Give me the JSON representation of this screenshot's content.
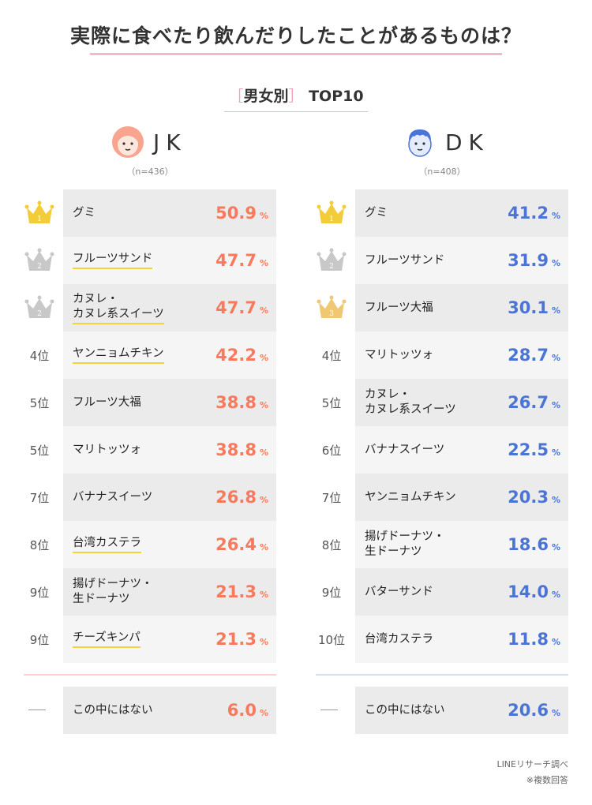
{
  "title": "実際に食べたり飲んだりしたことがあるものは？",
  "subtitle": {
    "open": "［",
    "text": "男女別",
    "close": "］",
    "tail": "TOP10"
  },
  "colors": {
    "jk": "#f77a5c",
    "dk": "#4a74d6",
    "gold": "#f3cc3a",
    "silver": "#c8c8c8",
    "bronze": "#f0c873",
    "underline": "#f3d33e"
  },
  "jk": {
    "label": "JK",
    "n": "（n=436）",
    "rows": [
      {
        "rank": "1",
        "rank_type": "crown-gold",
        "item_lines": [
          "グミ"
        ],
        "underline": false,
        "value": "50.9",
        "unit": "%"
      },
      {
        "rank": "2",
        "rank_type": "crown-silver",
        "item_lines": [
          "フルーツサンド"
        ],
        "underline": true,
        "value": "47.7",
        "unit": "%"
      },
      {
        "rank": "2",
        "rank_type": "crown-silver",
        "item_lines": [
          "カヌレ・",
          "カヌレ系スイーツ"
        ],
        "underline": true,
        "value": "47.7",
        "unit": "%"
      },
      {
        "rank": "4位",
        "rank_type": "text",
        "item_lines": [
          "ヤンニョムチキン"
        ],
        "underline": true,
        "value": "42.2",
        "unit": "%"
      },
      {
        "rank": "5位",
        "rank_type": "text",
        "item_lines": [
          "フルーツ大福"
        ],
        "underline": false,
        "value": "38.8",
        "unit": "%"
      },
      {
        "rank": "5位",
        "rank_type": "text",
        "item_lines": [
          "マリトッツォ"
        ],
        "underline": false,
        "value": "38.8",
        "unit": "%"
      },
      {
        "rank": "7位",
        "rank_type": "text",
        "item_lines": [
          "バナナスイーツ"
        ],
        "underline": false,
        "value": "26.8",
        "unit": "%"
      },
      {
        "rank": "8位",
        "rank_type": "text",
        "item_lines": [
          "台湾カステラ"
        ],
        "underline": true,
        "value": "26.4",
        "unit": "%"
      },
      {
        "rank": "9位",
        "rank_type": "text",
        "item_lines": [
          "揚げドーナツ・",
          "生ドーナツ"
        ],
        "underline": false,
        "value": "21.3",
        "unit": "%"
      },
      {
        "rank": "9位",
        "rank_type": "text",
        "item_lines": [
          "チーズキンパ"
        ],
        "underline": true,
        "value": "21.3",
        "unit": "%"
      }
    ],
    "none": {
      "item": "この中にはない",
      "value": "6.0",
      "unit": "%"
    }
  },
  "dk": {
    "label": "DK",
    "n": "（n=408）",
    "rows": [
      {
        "rank": "1",
        "rank_type": "crown-gold",
        "item_lines": [
          "グミ"
        ],
        "underline": false,
        "value": "41.2",
        "unit": "%"
      },
      {
        "rank": "2",
        "rank_type": "crown-silver",
        "item_lines": [
          "フルーツサンド"
        ],
        "underline": false,
        "value": "31.9",
        "unit": "%"
      },
      {
        "rank": "3",
        "rank_type": "crown-bronze",
        "item_lines": [
          "フルーツ大福"
        ],
        "underline": false,
        "value": "30.1",
        "unit": "%"
      },
      {
        "rank": "4位",
        "rank_type": "text",
        "item_lines": [
          "マリトッツォ"
        ],
        "underline": false,
        "value": "28.7",
        "unit": "%"
      },
      {
        "rank": "5位",
        "rank_type": "text",
        "item_lines": [
          "カヌレ・",
          "カヌレ系スイーツ"
        ],
        "underline": false,
        "value": "26.7",
        "unit": "%"
      },
      {
        "rank": "6位",
        "rank_type": "text",
        "item_lines": [
          "バナナスイーツ"
        ],
        "underline": false,
        "value": "22.5",
        "unit": "%"
      },
      {
        "rank": "7位",
        "rank_type": "text",
        "item_lines": [
          "ヤンニョムチキン"
        ],
        "underline": false,
        "value": "20.3",
        "unit": "%"
      },
      {
        "rank": "8位",
        "rank_type": "text",
        "item_lines": [
          "揚げドーナツ・",
          "生ドーナツ"
        ],
        "underline": false,
        "value": "18.6",
        "unit": "%"
      },
      {
        "rank": "9位",
        "rank_type": "text",
        "item_lines": [
          "バターサンド"
        ],
        "underline": false,
        "value": "14.0",
        "unit": "%"
      },
      {
        "rank": "10位",
        "rank_type": "text",
        "item_lines": [
          "台湾カステラ"
        ],
        "underline": false,
        "value": "11.8",
        "unit": "%"
      }
    ],
    "none": {
      "item": "この中にはない",
      "value": "20.6",
      "unit": "%"
    }
  },
  "footer": {
    "source": "LINEリサーチ調べ",
    "note": "※複数回答"
  },
  "chart_data": {
    "type": "table",
    "title": "実際に食べたり飲んだりしたことがあるものは？",
    "subtitle": "［男女別］TOP10",
    "unit": "%",
    "series": [
      {
        "name": "JK",
        "n": "（n=436）",
        "categories": [
          "グミ",
          "フルーツサンド",
          "カヌレ・カヌレ系スイーツ",
          "ヤンニョムチキン",
          "フルーツ大福",
          "マリトッツォ",
          "バナナスイーツ",
          "台湾カステラ",
          "揚げドーナツ・生ドーナツ",
          "チーズキンパ",
          "この中にはない"
        ],
        "values": [
          50.9,
          47.7,
          47.7,
          42.2,
          38.8,
          38.8,
          26.8,
          26.4,
          21.3,
          21.3,
          6.0
        ]
      },
      {
        "name": "DK",
        "n": "（n=408）",
        "categories": [
          "グミ",
          "フルーツサンド",
          "フルーツ大福",
          "マリトッツォ",
          "カヌレ・カヌレ系スイーツ",
          "バナナスイーツ",
          "ヤンニョムチキン",
          "揚げドーナツ・生ドーナツ",
          "バターサンド",
          "台湾カステラ",
          "この中にはない"
        ],
        "values": [
          41.2,
          31.9,
          30.1,
          28.7,
          26.7,
          22.5,
          20.3,
          18.6,
          14.0,
          11.8,
          20.6
        ]
      }
    ]
  }
}
